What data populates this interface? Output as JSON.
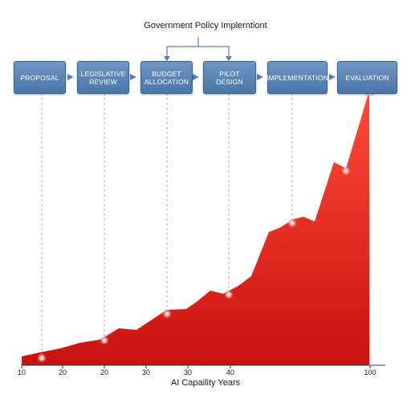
{
  "title": "Government Policy Implerntiont",
  "stages": [
    {
      "label": "PROPOSAL"
    },
    {
      "label": "LEGISLATIVE\nREVIEW"
    },
    {
      "label": "BUDGET\nALLOCATION"
    },
    {
      "label": "PILOT\nDESIGN"
    },
    {
      "label": "IMPLEMENTATION"
    },
    {
      "label": "EVALUATION"
    }
  ],
  "colors": {
    "box": "#5a84b6",
    "area": "#e8231f",
    "marker": "#ffd0d0"
  },
  "chart_data": {
    "type": "area",
    "xlabel": "AI Capaility Years",
    "tick_labels": [
      "10",
      "20",
      "20",
      "30",
      "30",
      "40",
      "100"
    ]
  }
}
